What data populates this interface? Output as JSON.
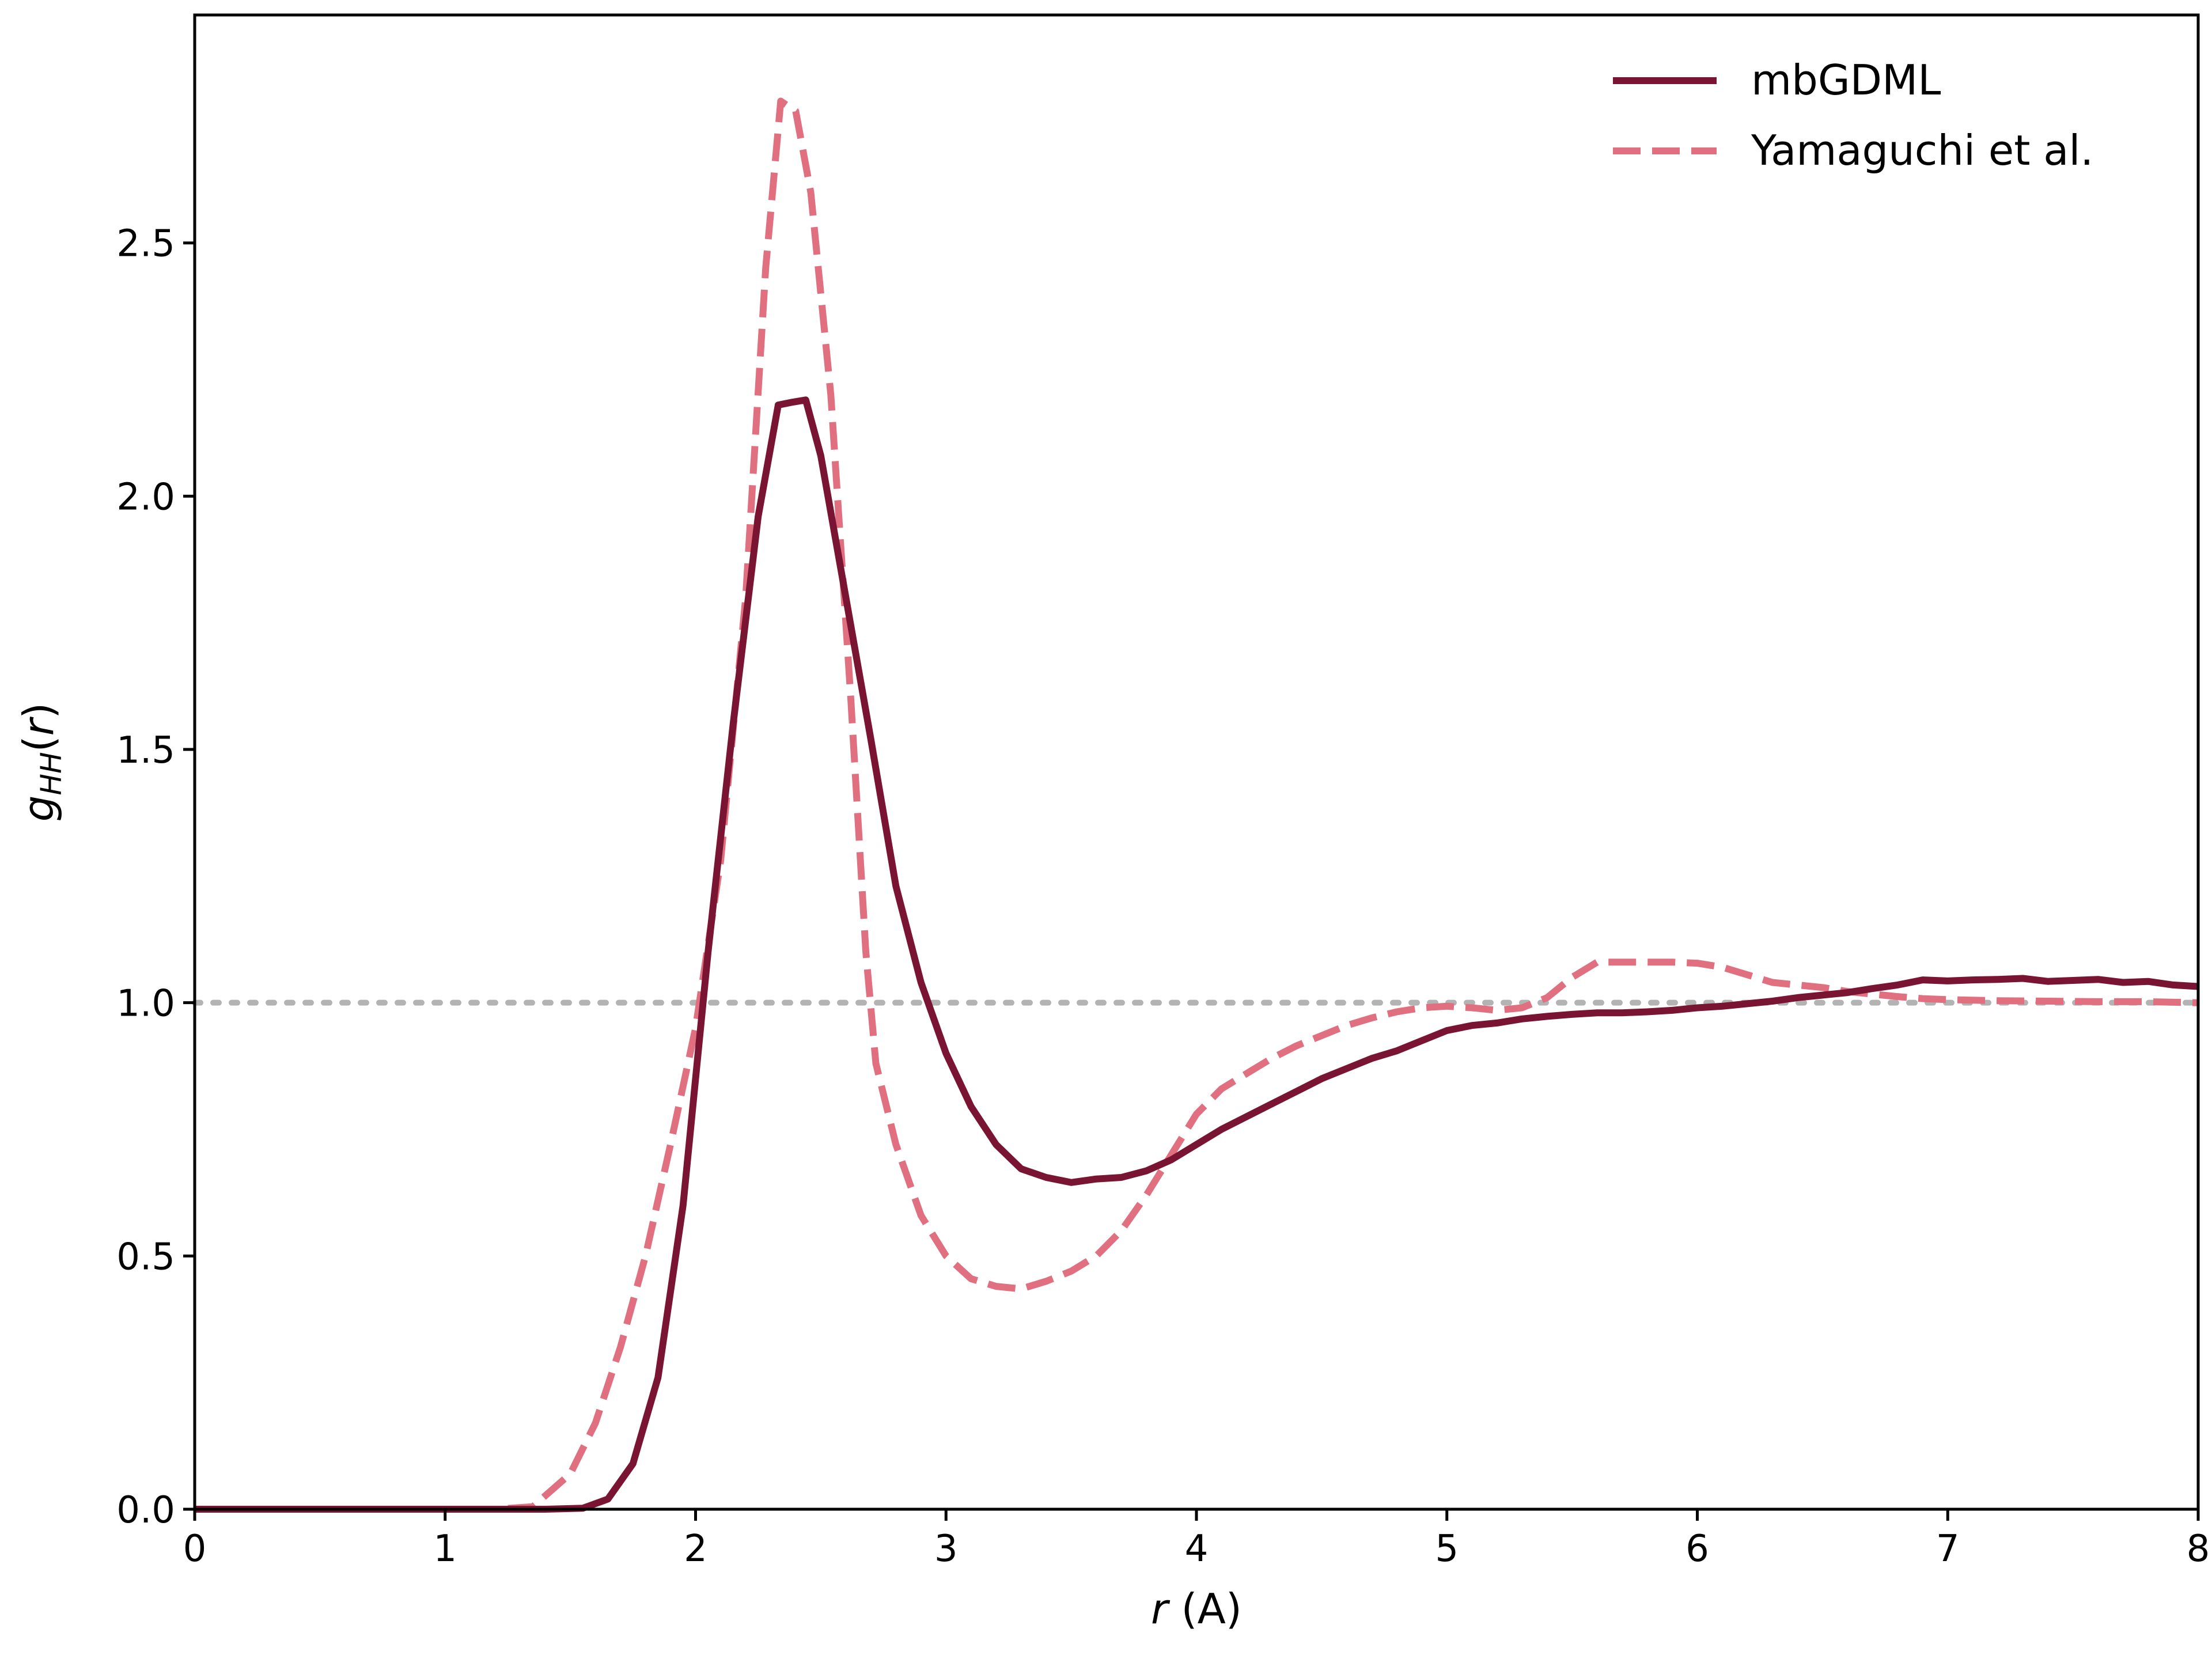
{
  "chart_data": {
    "type": "line",
    "title": "",
    "xlabel_var": "r",
    "xlabel_rest": " (A)",
    "ylabel_main": "g",
    "ylabel_sub": "HH",
    "ylabel_paren_open": "(",
    "ylabel_var": "r",
    "ylabel_paren_close": ")",
    "xlim": [
      0,
      8
    ],
    "ylim": [
      0,
      2.95
    ],
    "x_ticks": [
      "0",
      "1",
      "2",
      "3",
      "4",
      "5",
      "6",
      "7",
      "8"
    ],
    "y_ticks": [
      "0.0",
      "0.5",
      "1.0",
      "1.5",
      "2.0",
      "2.5"
    ],
    "grid": false,
    "legend_position": "top-right",
    "reference_line": {
      "y": 1.0,
      "style": "dotted",
      "color": "#b3b3b3"
    },
    "series": [
      {
        "name": "mbGDML",
        "style": "solid",
        "color": "#7a1433",
        "points": [
          [
            0.0,
            0.0
          ],
          [
            0.2,
            0.0
          ],
          [
            0.4,
            0.0
          ],
          [
            0.6,
            0.0
          ],
          [
            0.8,
            0.0
          ],
          [
            1.0,
            0.0
          ],
          [
            1.2,
            0.0
          ],
          [
            1.4,
            0.0
          ],
          [
            1.55,
            0.002
          ],
          [
            1.65,
            0.02
          ],
          [
            1.75,
            0.09
          ],
          [
            1.85,
            0.26
          ],
          [
            1.95,
            0.6
          ],
          [
            2.05,
            1.1
          ],
          [
            2.15,
            1.55
          ],
          [
            2.25,
            1.96
          ],
          [
            2.33,
            2.18
          ],
          [
            2.38,
            2.185
          ],
          [
            2.44,
            2.19
          ],
          [
            2.5,
            2.08
          ],
          [
            2.6,
            1.8
          ],
          [
            2.7,
            1.52
          ],
          [
            2.8,
            1.23
          ],
          [
            2.9,
            1.04
          ],
          [
            3.0,
            0.9
          ],
          [
            3.1,
            0.795
          ],
          [
            3.2,
            0.72
          ],
          [
            3.3,
            0.672
          ],
          [
            3.4,
            0.655
          ],
          [
            3.5,
            0.645
          ],
          [
            3.6,
            0.652
          ],
          [
            3.7,
            0.655
          ],
          [
            3.8,
            0.668
          ],
          [
            3.9,
            0.69
          ],
          [
            4.0,
            0.72
          ],
          [
            4.1,
            0.75
          ],
          [
            4.2,
            0.775
          ],
          [
            4.3,
            0.8
          ],
          [
            4.4,
            0.825
          ],
          [
            4.5,
            0.85
          ],
          [
            4.6,
            0.87
          ],
          [
            4.7,
            0.89
          ],
          [
            4.8,
            0.905
          ],
          [
            4.9,
            0.925
          ],
          [
            5.0,
            0.945
          ],
          [
            5.1,
            0.955
          ],
          [
            5.2,
            0.96
          ],
          [
            5.3,
            0.968
          ],
          [
            5.4,
            0.973
          ],
          [
            5.5,
            0.977
          ],
          [
            5.6,
            0.98
          ],
          [
            5.7,
            0.98
          ],
          [
            5.8,
            0.982
          ],
          [
            5.9,
            0.985
          ],
          [
            6.0,
            0.99
          ],
          [
            6.1,
            0.993
          ],
          [
            6.2,
            0.998
          ],
          [
            6.3,
            1.003
          ],
          [
            6.4,
            1.01
          ],
          [
            6.5,
            1.015
          ],
          [
            6.6,
            1.02
          ],
          [
            6.7,
            1.028
          ],
          [
            6.8,
            1.035
          ],
          [
            6.9,
            1.045
          ],
          [
            7.0,
            1.043
          ],
          [
            7.1,
            1.045
          ],
          [
            7.2,
            1.046
          ],
          [
            7.3,
            1.048
          ],
          [
            7.4,
            1.042
          ],
          [
            7.5,
            1.044
          ],
          [
            7.6,
            1.046
          ],
          [
            7.7,
            1.04
          ],
          [
            7.8,
            1.042
          ],
          [
            7.9,
            1.035
          ],
          [
            8.0,
            1.032
          ]
        ]
      },
      {
        "name": "Yamaguchi et al.",
        "style": "dashed",
        "color": "#e07080",
        "points": [
          [
            0.0,
            0.0
          ],
          [
            0.3,
            0.0
          ],
          [
            0.6,
            0.0
          ],
          [
            0.9,
            0.0
          ],
          [
            1.2,
            0.0
          ],
          [
            1.35,
            0.005
          ],
          [
            1.5,
            0.07
          ],
          [
            1.6,
            0.17
          ],
          [
            1.7,
            0.32
          ],
          [
            1.8,
            0.5
          ],
          [
            1.9,
            0.72
          ],
          [
            2.0,
            0.95
          ],
          [
            2.1,
            1.28
          ],
          [
            2.2,
            1.8
          ],
          [
            2.28,
            2.45
          ],
          [
            2.34,
            2.78
          ],
          [
            2.4,
            2.76
          ],
          [
            2.46,
            2.6
          ],
          [
            2.54,
            2.2
          ],
          [
            2.62,
            1.6
          ],
          [
            2.68,
            1.1
          ],
          [
            2.72,
            0.88
          ],
          [
            2.8,
            0.72
          ],
          [
            2.9,
            0.58
          ],
          [
            3.0,
            0.5
          ],
          [
            3.1,
            0.455
          ],
          [
            3.2,
            0.44
          ],
          [
            3.3,
            0.435
          ],
          [
            3.4,
            0.45
          ],
          [
            3.5,
            0.47
          ],
          [
            3.6,
            0.5
          ],
          [
            3.7,
            0.55
          ],
          [
            3.8,
            0.62
          ],
          [
            3.9,
            0.7
          ],
          [
            4.0,
            0.78
          ],
          [
            4.1,
            0.83
          ],
          [
            4.2,
            0.86
          ],
          [
            4.3,
            0.89
          ],
          [
            4.4,
            0.915
          ],
          [
            4.5,
            0.935
          ],
          [
            4.6,
            0.955
          ],
          [
            4.7,
            0.97
          ],
          [
            4.8,
            0.982
          ],
          [
            4.9,
            0.99
          ],
          [
            5.0,
            0.993
          ],
          [
            5.1,
            0.99
          ],
          [
            5.2,
            0.985
          ],
          [
            5.3,
            0.99
          ],
          [
            5.4,
            1.01
          ],
          [
            5.5,
            1.05
          ],
          [
            5.6,
            1.08
          ],
          [
            5.7,
            1.08
          ],
          [
            5.8,
            1.08
          ],
          [
            5.9,
            1.08
          ],
          [
            6.0,
            1.078
          ],
          [
            6.1,
            1.07
          ],
          [
            6.2,
            1.055
          ],
          [
            6.3,
            1.04
          ],
          [
            6.4,
            1.035
          ],
          [
            6.5,
            1.03
          ],
          [
            6.6,
            1.022
          ],
          [
            6.7,
            1.017
          ],
          [
            6.8,
            1.012
          ],
          [
            6.9,
            1.008
          ],
          [
            7.0,
            1.006
          ],
          [
            7.2,
            1.004
          ],
          [
            7.4,
            1.003
          ],
          [
            7.6,
            1.002
          ],
          [
            7.8,
            1.002
          ],
          [
            8.0,
            1.0
          ]
        ]
      }
    ]
  }
}
